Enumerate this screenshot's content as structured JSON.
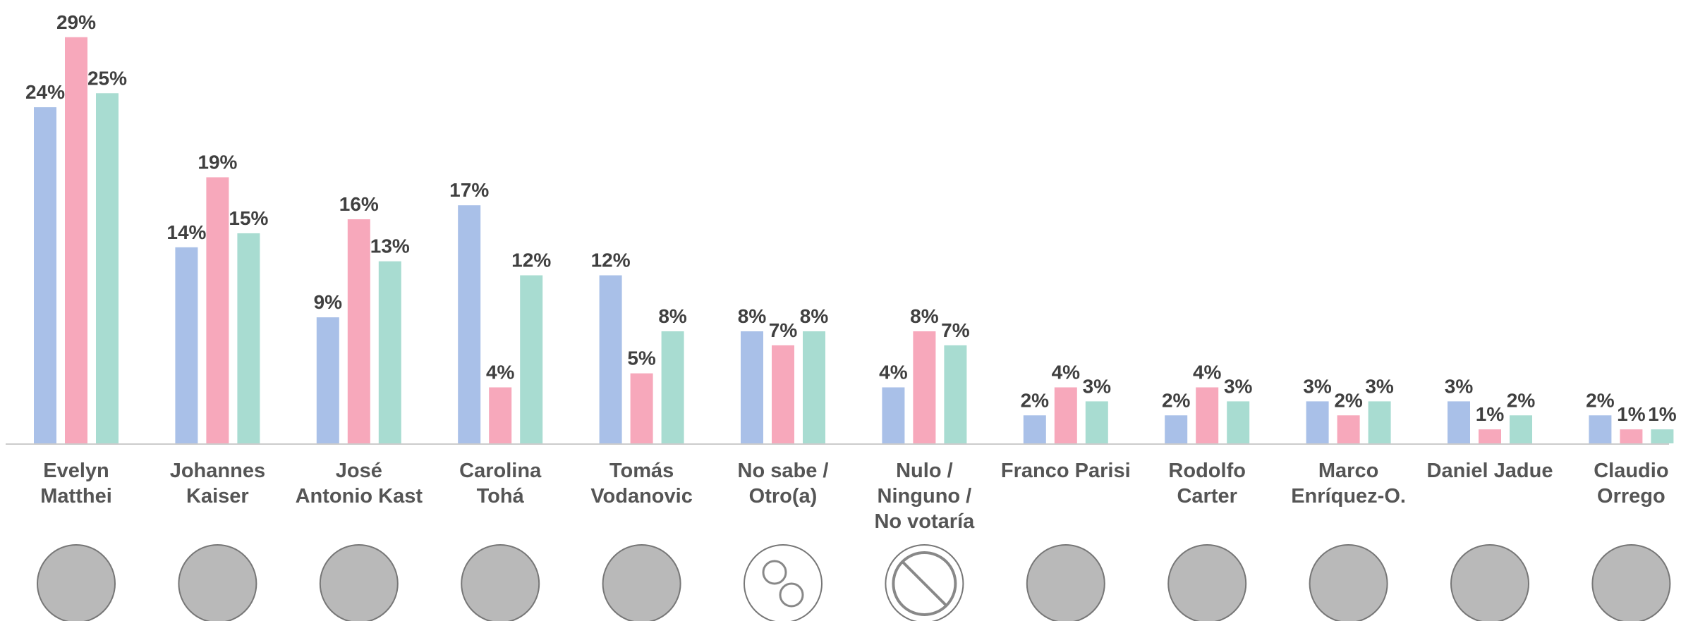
{
  "chart_data": {
    "type": "bar",
    "categories": [
      "Evelyn\nMatthei",
      "Johannes\nKaiser",
      "José\nAntonio Kast",
      "Carolina\nTohá",
      "Tomás\nVodanovic",
      "No sabe /\nOtro(a)",
      "Nulo /\nNinguno /\nNo votaría",
      "Franco Parisi",
      "Rodolfo\nCarter",
      "Marco\nEnríquez-O.",
      "Daniel Jadue",
      "Claudio\nOrrego"
    ],
    "series": [
      {
        "color": "#a9c0e8",
        "values": [
          24,
          14,
          9,
          17,
          12,
          8,
          4,
          2,
          2,
          3,
          3,
          2
        ],
        "value_labels": [
          "24%",
          "14%",
          "9%",
          "17%",
          "12%",
          "8%",
          "4%",
          "2%",
          "2%",
          "3%",
          "3%",
          "2%"
        ]
      },
      {
        "color": "#f7a8bb",
        "values": [
          29,
          19,
          16,
          4,
          5,
          7,
          8,
          4,
          4,
          2,
          1,
          1
        ],
        "value_labels": [
          "29%",
          "19%",
          "16%",
          "4%",
          "5%",
          "7%",
          "8%",
          "4%",
          "4%",
          "2%",
          "1%",
          "1%"
        ]
      },
      {
        "color": "#a8dcd1",
        "values": [
          25,
          15,
          13,
          12,
          8,
          8,
          7,
          3,
          3,
          3,
          2,
          1
        ],
        "value_labels": [
          "25%",
          "15%",
          "13%",
          "12%",
          "8%",
          "8%",
          "7%",
          "3%",
          "3%",
          "3%",
          "2%",
          "1%"
        ]
      }
    ]
  }
}
